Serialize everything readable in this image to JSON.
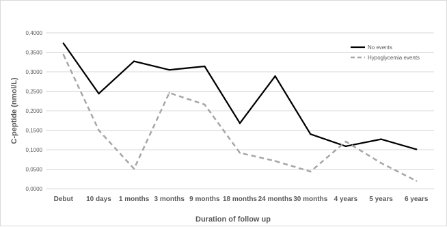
{
  "chart_data": {
    "type": "line",
    "xlabel": "Duration of follow up",
    "ylabel": "C-peptide (nmol/L)",
    "ylim": [
      0,
      0.4
    ],
    "yticks": [
      "0,0000",
      "0,0500",
      "0,1000",
      "0,1500",
      "0,2000",
      "0,2500",
      "0,3000",
      "0,3500",
      "0,4000"
    ],
    "grid": true,
    "legend_position": "top-right",
    "categories": [
      "Debut",
      "10 days",
      "1 months",
      "3 months",
      "9 months",
      "18 months",
      "24 months",
      "30 months",
      "4 years",
      "5 years",
      "6 years"
    ],
    "series": [
      {
        "name": "No events",
        "style": "solid",
        "color": "#000000",
        "values": [
          0.373,
          0.244,
          0.327,
          0.305,
          0.314,
          0.168,
          0.289,
          0.14,
          0.109,
          0.127,
          0.101
        ]
      },
      {
        "name": "Hypoglycemia events",
        "style": "dashed",
        "color": "#a6a6a6",
        "values": [
          0.344,
          0.15,
          0.051,
          0.246,
          0.216,
          0.092,
          0.071,
          0.044,
          0.121,
          0.066,
          0.02
        ]
      }
    ]
  }
}
